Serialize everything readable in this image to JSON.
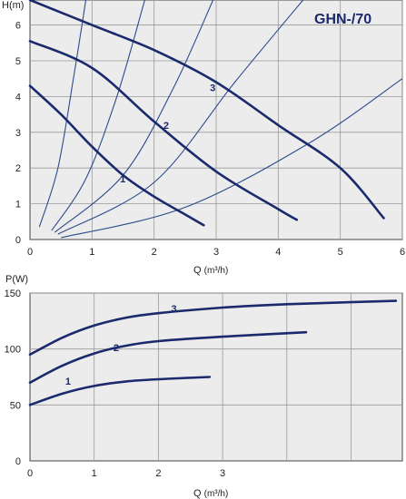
{
  "colors": {
    "panel_bg": "#ececec",
    "grid": "#9a9a9a",
    "pump_curve": "#1a2a6c",
    "system_curve": "#2c4a8c"
  },
  "chart_data": [
    {
      "type": "line",
      "title": "GHN-/70",
      "ylabel": "H(m)",
      "xlabel": "Q",
      "xunit": "(m³/h)",
      "xlim": [
        0,
        6
      ],
      "ylim": [
        0,
        6.7
      ],
      "xticks": [
        "0",
        "1",
        "2",
        "3",
        "4",
        "5",
        "6"
      ],
      "yticks": [
        "0",
        "1",
        "2",
        "3",
        "4",
        "5",
        "6"
      ],
      "grid": true,
      "series": [
        {
          "name": "1",
          "points": [
            [
              0,
              4.3
            ],
            [
              0.5,
              3.5
            ],
            [
              1.0,
              2.6
            ],
            [
              1.5,
              1.8
            ],
            [
              2.0,
              1.2
            ],
            [
              2.5,
              0.7
            ],
            [
              2.8,
              0.4
            ]
          ]
        },
        {
          "name": "2",
          "points": [
            [
              0,
              5.55
            ],
            [
              1.0,
              4.8
            ],
            [
              2.0,
              3.3
            ],
            [
              3.0,
              1.9
            ],
            [
              4.0,
              0.85
            ],
            [
              4.3,
              0.55
            ]
          ]
        },
        {
          "name": "3",
          "points": [
            [
              0,
              6.7
            ],
            [
              1.0,
              6.0
            ],
            [
              2.0,
              5.3
            ],
            [
              3.0,
              4.4
            ],
            [
              4.0,
              3.2
            ],
            [
              5.0,
              2.0
            ],
            [
              5.7,
              0.6
            ]
          ]
        }
      ],
      "system_curves": [
        {
          "points": [
            [
              0.15,
              0.35
            ],
            [
              0.45,
              2.0
            ],
            [
              0.7,
              4.5
            ],
            [
              0.9,
              6.7
            ]
          ]
        },
        {
          "points": [
            [
              0.35,
              0.25
            ],
            [
              0.9,
              1.7
            ],
            [
              1.4,
              4.0
            ],
            [
              1.85,
              6.7
            ]
          ]
        },
        {
          "points": [
            [
              0.4,
              0.2
            ],
            [
              1.5,
              1.8
            ],
            [
              2.3,
              4.2
            ],
            [
              2.95,
              6.7
            ]
          ]
        },
        {
          "points": [
            [
              0.45,
              0.15
            ],
            [
              2.0,
              1.6
            ],
            [
              3.3,
              4.4
            ],
            [
              4.4,
              6.7
            ]
          ]
        },
        {
          "points": [
            [
              0.5,
              0.05
            ],
            [
              2.5,
              0.9
            ],
            [
              4.5,
              2.7
            ],
            [
              6.0,
              4.5
            ]
          ]
        }
      ]
    },
    {
      "type": "line",
      "ylabel": "P(W)",
      "xlabel": "Q",
      "xunit": "(m³/h)",
      "xlim": [
        0,
        5.8
      ],
      "ylim": [
        0,
        150
      ],
      "xticks": [
        "0",
        "1",
        "2",
        "3"
      ],
      "yticks": [
        "0",
        "50",
        "100",
        "150"
      ],
      "grid": true,
      "series": [
        {
          "name": "1",
          "points": [
            [
              0,
              50
            ],
            [
              0.5,
              60
            ],
            [
              1.0,
              67
            ],
            [
              1.5,
              71
            ],
            [
              2.0,
              73
            ],
            [
              2.8,
              75
            ]
          ]
        },
        {
          "name": "2",
          "points": [
            [
              0,
              70
            ],
            [
              0.5,
              85
            ],
            [
              1.0,
              96
            ],
            [
              1.5,
              103
            ],
            [
              2.0,
              107
            ],
            [
              3.0,
              111
            ],
            [
              4.3,
              115
            ]
          ]
        },
        {
          "name": "3",
          "points": [
            [
              0,
              95
            ],
            [
              0.5,
              110
            ],
            [
              1.0,
              121
            ],
            [
              1.5,
              128
            ],
            [
              2.0,
              132
            ],
            [
              3.0,
              137
            ],
            [
              4.0,
              140
            ],
            [
              5.7,
              143
            ]
          ]
        }
      ]
    }
  ]
}
